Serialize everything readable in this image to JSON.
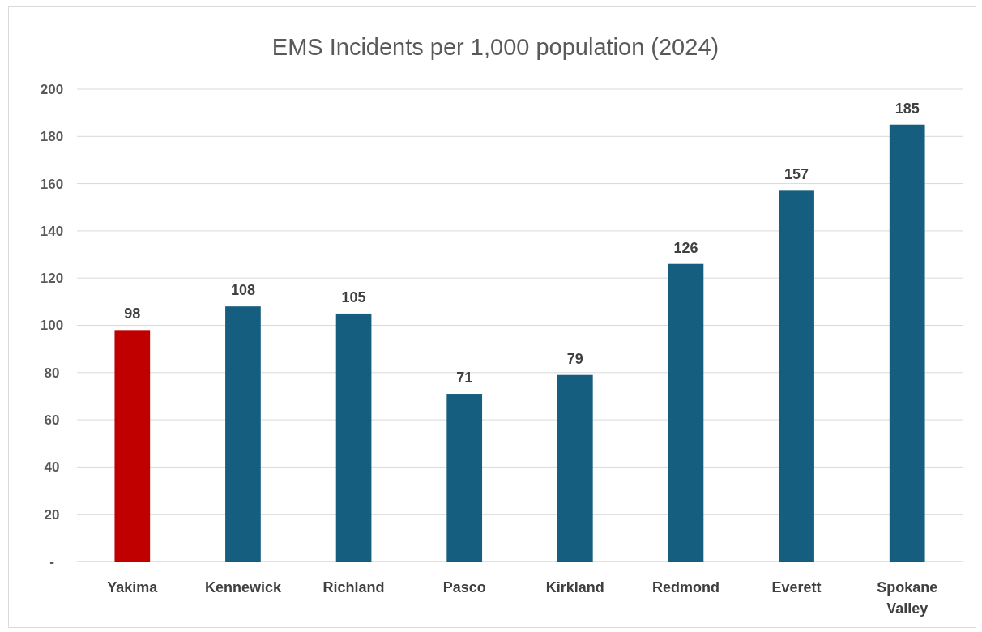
{
  "chart_data": {
    "type": "bar",
    "title": "EMS Incidents per 1,000 population (2024)",
    "categories": [
      "Yakima",
      "Kennewick",
      "Richland",
      "Pasco",
      "Kirkland",
      "Redmond",
      "Everett",
      "Spokane Valley"
    ],
    "values": [
      98,
      108,
      105,
      71,
      79,
      126,
      157,
      185
    ],
    "colors": [
      "#c00000",
      "#165e80",
      "#165e80",
      "#165e80",
      "#165e80",
      "#165e80",
      "#165e80",
      "#165e80"
    ],
    "ylim": [
      0,
      200
    ],
    "yticks": [
      {
        "value": 0,
        "label": "-"
      },
      20,
      40,
      60,
      80,
      100,
      120,
      140,
      160,
      180,
      200
    ],
    "grid": "y",
    "data_labels": true
  }
}
